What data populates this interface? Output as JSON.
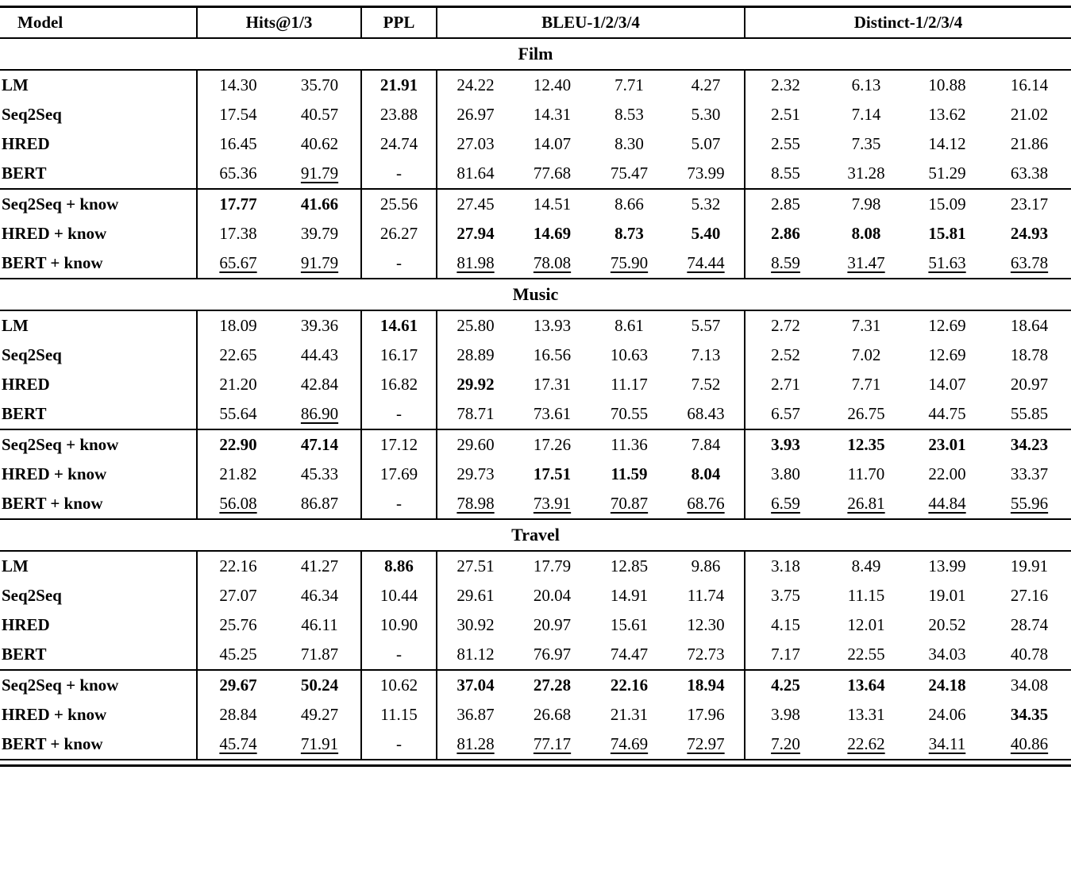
{
  "header": {
    "model": "Model",
    "groups": [
      {
        "label": "Hits@1/3",
        "span": 2
      },
      {
        "label": "PPL",
        "span": 1
      },
      {
        "label": "BLEU-1/2/3/4",
        "span": 4
      },
      {
        "label": "Distinct-1/2/3/4",
        "span": 4
      }
    ]
  },
  "sections": [
    {
      "title": "Film",
      "groups": [
        {
          "rows": [
            {
              "model": "LM",
              "values": [
                "14.30",
                "35.70",
                "21.91",
                "24.22",
                "12.40",
                "7.71",
                "4.27",
                "2.32",
                "6.13",
                "10.88",
                "16.14"
              ],
              "bold": [
                2
              ],
              "underline": []
            },
            {
              "model": "Seq2Seq",
              "values": [
                "17.54",
                "40.57",
                "23.88",
                "26.97",
                "14.31",
                "8.53",
                "5.30",
                "2.51",
                "7.14",
                "13.62",
                "21.02"
              ],
              "bold": [],
              "underline": []
            },
            {
              "model": "HRED",
              "values": [
                "16.45",
                "40.62",
                "24.74",
                "27.03",
                "14.07",
                "8.30",
                "5.07",
                "2.55",
                "7.35",
                "14.12",
                "21.86"
              ],
              "bold": [],
              "underline": []
            },
            {
              "model": "BERT",
              "values": [
                "65.36",
                "91.79",
                "-",
                "81.64",
                "77.68",
                "75.47",
                "73.99",
                "8.55",
                "31.28",
                "51.29",
                "63.38"
              ],
              "bold": [],
              "underline": [
                1
              ]
            }
          ]
        },
        {
          "rows": [
            {
              "model": "Seq2Seq + know",
              "values": [
                "17.77",
                "41.66",
                "25.56",
                "27.45",
                "14.51",
                "8.66",
                "5.32",
                "2.85",
                "7.98",
                "15.09",
                "23.17"
              ],
              "bold": [
                0,
                1
              ],
              "underline": []
            },
            {
              "model": "HRED + know",
              "values": [
                "17.38",
                "39.79",
                "26.27",
                "27.94",
                "14.69",
                "8.73",
                "5.40",
                "2.86",
                "8.08",
                "15.81",
                "24.93"
              ],
              "bold": [
                3,
                4,
                5,
                6,
                7,
                8,
                9,
                10
              ],
              "underline": []
            },
            {
              "model": "BERT + know",
              "values": [
                "65.67",
                "91.79",
                "-",
                "81.98",
                "78.08",
                "75.90",
                "74.44",
                "8.59",
                "31.47",
                "51.63",
                "63.78"
              ],
              "bold": [],
              "underline": [
                0,
                1,
                3,
                4,
                5,
                6,
                7,
                8,
                9,
                10
              ]
            }
          ]
        }
      ]
    },
    {
      "title": "Music",
      "groups": [
        {
          "rows": [
            {
              "model": "LM",
              "values": [
                "18.09",
                "39.36",
                "14.61",
                "25.80",
                "13.93",
                "8.61",
                "5.57",
                "2.72",
                "7.31",
                "12.69",
                "18.64"
              ],
              "bold": [
                2
              ],
              "underline": []
            },
            {
              "model": "Seq2Seq",
              "values": [
                "22.65",
                "44.43",
                "16.17",
                "28.89",
                "16.56",
                "10.63",
                "7.13",
                "2.52",
                "7.02",
                "12.69",
                "18.78"
              ],
              "bold": [],
              "underline": []
            },
            {
              "model": "HRED",
              "values": [
                "21.20",
                "42.84",
                "16.82",
                "29.92",
                "17.31",
                "11.17",
                "7.52",
                "2.71",
                "7.71",
                "14.07",
                "20.97"
              ],
              "bold": [
                3
              ],
              "underline": []
            },
            {
              "model": "BERT",
              "values": [
                "55.64",
                "86.90",
                "-",
                "78.71",
                "73.61",
                "70.55",
                "68.43",
                "6.57",
                "26.75",
                "44.75",
                "55.85"
              ],
              "bold": [],
              "underline": [
                1
              ]
            }
          ]
        },
        {
          "rows": [
            {
              "model": "Seq2Seq + know",
              "values": [
                "22.90",
                "47.14",
                "17.12",
                "29.60",
                "17.26",
                "11.36",
                "7.84",
                "3.93",
                "12.35",
                "23.01",
                "34.23"
              ],
              "bold": [
                0,
                1,
                7,
                8,
                9,
                10
              ],
              "underline": []
            },
            {
              "model": "HRED + know",
              "values": [
                "21.82",
                "45.33",
                "17.69",
                "29.73",
                "17.51",
                "11.59",
                "8.04",
                "3.80",
                "11.70",
                "22.00",
                "33.37"
              ],
              "bold": [
                4,
                5,
                6
              ],
              "underline": []
            },
            {
              "model": "BERT + know",
              "values": [
                "56.08",
                "86.87",
                "-",
                "78.98",
                "73.91",
                "70.87",
                "68.76",
                "6.59",
                "26.81",
                "44.84",
                "55.96"
              ],
              "bold": [],
              "underline": [
                0,
                3,
                4,
                5,
                6,
                7,
                8,
                9,
                10
              ]
            }
          ]
        }
      ]
    },
    {
      "title": "Travel",
      "groups": [
        {
          "rows": [
            {
              "model": "LM",
              "values": [
                "22.16",
                "41.27",
                "8.86",
                "27.51",
                "17.79",
                "12.85",
                "9.86",
                "3.18",
                "8.49",
                "13.99",
                "19.91"
              ],
              "bold": [
                2
              ],
              "underline": []
            },
            {
              "model": "Seq2Seq",
              "values": [
                "27.07",
                "46.34",
                "10.44",
                "29.61",
                "20.04",
                "14.91",
                "11.74",
                "3.75",
                "11.15",
                "19.01",
                "27.16"
              ],
              "bold": [],
              "underline": []
            },
            {
              "model": "HRED",
              "values": [
                "25.76",
                "46.11",
                "10.90",
                "30.92",
                "20.97",
                "15.61",
                "12.30",
                "4.15",
                "12.01",
                "20.52",
                "28.74"
              ],
              "bold": [],
              "underline": []
            },
            {
              "model": "BERT",
              "values": [
                "45.25",
                "71.87",
                "-",
                "81.12",
                "76.97",
                "74.47",
                "72.73",
                "7.17",
                "22.55",
                "34.03",
                "40.78"
              ],
              "bold": [],
              "underline": []
            }
          ]
        },
        {
          "rows": [
            {
              "model": "Seq2Seq + know",
              "values": [
                "29.67",
                "50.24",
                "10.62",
                "37.04",
                "27.28",
                "22.16",
                "18.94",
                "4.25",
                "13.64",
                "24.18",
                "34.08"
              ],
              "bold": [
                0,
                1,
                3,
                4,
                5,
                6,
                7,
                8,
                9
              ],
              "underline": []
            },
            {
              "model": "HRED + know",
              "values": [
                "28.84",
                "49.27",
                "11.15",
                "36.87",
                "26.68",
                "21.31",
                "17.96",
                "3.98",
                "13.31",
                "24.06",
                "34.35"
              ],
              "bold": [
                10
              ],
              "underline": []
            },
            {
              "model": "BERT + know",
              "values": [
                "45.74",
                "71.91",
                "-",
                "81.28",
                "77.17",
                "74.69",
                "72.97",
                "7.20",
                "22.62",
                "34.11",
                "40.86"
              ],
              "bold": [],
              "underline": [
                0,
                1,
                3,
                4,
                5,
                6,
                7,
                8,
                9,
                10
              ]
            }
          ]
        }
      ]
    }
  ]
}
